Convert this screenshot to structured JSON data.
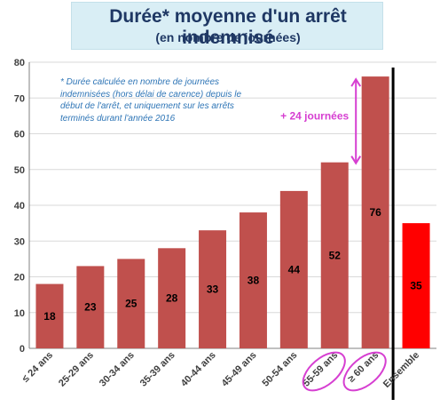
{
  "title": "Durée* moyenne d'un arrêt indemnisé",
  "subtitle": "(en nombre de journées)",
  "note": "* Durée calculée en nombre de journées indemnisées (hors délai de carence) depuis le début de l'arrêt, et uniquement sur les arrêts terminés durant l'année 2016",
  "annotation": "+ 24 journées",
  "colors": {
    "bar": "#c0504d",
    "bar_total": "#ff0000",
    "highlight": "#d63fd1",
    "separator": "#000000"
  },
  "chart_data": {
    "type": "bar",
    "categories": [
      "≤ 24 ans",
      "25-29 ans",
      "30-34 ans",
      "35-39 ans",
      "40-44 ans",
      "45-49 ans",
      "50-54 ans",
      "55-59 ans",
      "≥ 60 ans",
      "Ensemble"
    ],
    "values": [
      18,
      23,
      25,
      28,
      33,
      38,
      44,
      52,
      76,
      35
    ],
    "data_labels": [
      "18",
      "23",
      "25",
      "28",
      "33",
      "38",
      "44",
      "52",
      "76",
      "35"
    ],
    "yticks": [
      "0",
      "10",
      "20",
      "30",
      "40",
      "50",
      "60",
      "70",
      "80"
    ],
    "ylim": [
      0,
      80
    ],
    "highlighted_categories": [
      "55-59 ans",
      "≥ 60 ans"
    ],
    "grid": true,
    "title": "Durée* moyenne d'un arrêt indemnisé"
  }
}
